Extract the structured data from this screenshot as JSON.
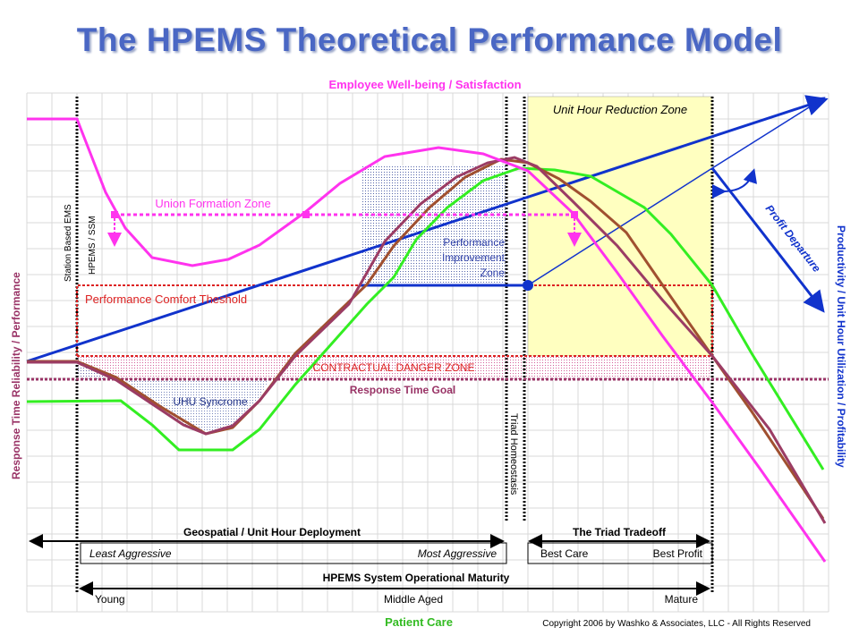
{
  "title": "The HPEMS Theoretical Performance Model",
  "labels": {
    "top_axis": "Employee Well-being / Satisfaction",
    "left_axis": "Response Time Reliability / Performance",
    "right_axis": "Productivity / Unit Hour Utilization / Profitability",
    "bottom_axis": "Patient Care",
    "copyright": "Copyright 2006 by Washko & Associates, LLC - All Rights Reserved",
    "unit_hour_reduction_zone": "Unit Hour Reduction Zone",
    "union_formation_zone": "Union Formation Zone",
    "performance_improvement_line1": "Performance",
    "performance_improvement_line2": "Improvement",
    "performance_improvement_line3": "Zone",
    "performance_comfort": "Performance Comfort Theshold",
    "contractual_danger": "CONTRACTUAL DANGER ZONE",
    "response_time_goal": "Response Time Goal",
    "uhu_syndrome": "UHU Syncrome",
    "station_based": "Station Based EMS",
    "hpems_ssm": "HPEMS / SSM",
    "triad_homeostasis": "Triad Homeostasis",
    "profit_departure": "Profit Departure",
    "geospatial": "Geospatial / Unit Hour Deployment",
    "triad_tradeoff": "The Triad Tradeoff",
    "least_aggressive": "Least Aggressive",
    "most_aggressive": "Most Aggressive",
    "best_care": "Best Care",
    "best_profit": "Best Profit",
    "maturity": "HPEMS System Operational Maturity",
    "young": "Young",
    "middle_aged": "Middle Aged",
    "mature": "Mature"
  },
  "colors": {
    "title": "#4a67c4",
    "magenta": "#ff33ee",
    "maroon": "#9b3c64",
    "green": "#33ee22",
    "brown": "#a05030",
    "blue": "#1133cc",
    "red_dotted": "#dd2222",
    "yellow_zone": "#ffffc0",
    "grid": "#d8d8d8"
  }
}
